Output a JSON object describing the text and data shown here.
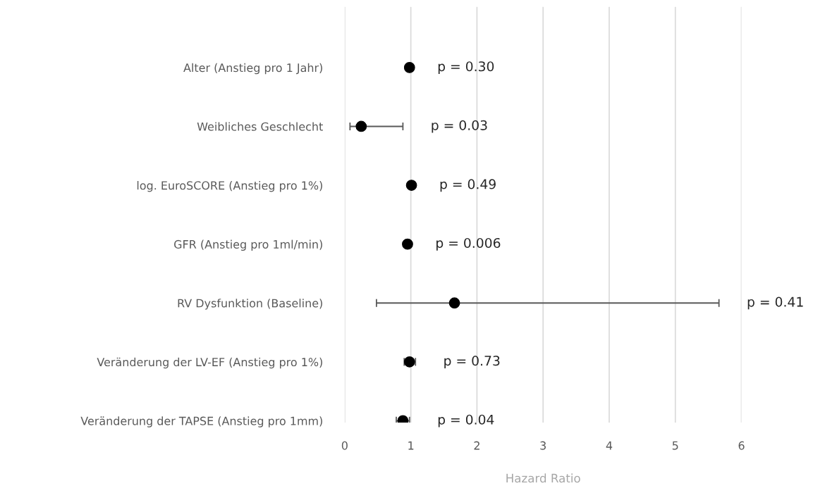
{
  "chart_data": {
    "type": "scatter",
    "orientation": "horizontal",
    "xlabel": "Hazard Ratio",
    "categories": [
      "Alter (Anstieg pro 1 Jahr)",
      "Weibliches Geschlecht",
      "log. EuroSCORE (Anstieg pro 1%)",
      "GFR (Anstieg pro 1ml/min)",
      "RV Dysfunktion (Baseline)",
      "Veränderung der LV-EF (Anstieg pro 1%)",
      "Veränderung der TAPSE (Anstieg pro 1mm)"
    ],
    "series": [
      {
        "color": "#000000",
        "values": [
          0.98,
          0.25,
          1.01,
          0.95,
          1.66,
          0.98,
          0.88
        ],
        "errors": [
          null,
          [
            0.08,
            0.88
          ],
          null,
          null,
          [
            0.48,
            5.66
          ],
          [
            0.9,
            1.07
          ],
          [
            0.78,
            0.98
          ]
        ]
      }
    ],
    "xlim": [
      0,
      6
    ],
    "xticks": [
      0,
      1,
      2,
      3,
      4,
      5,
      6
    ],
    "grid": "x",
    "marker": "circle",
    "annotations": [
      "p = 0.30",
      "p = 0.03",
      "p = 0.49",
      "p = 0.006",
      "p = 0.41",
      "p = 0.73",
      "p = 0.04"
    ]
  }
}
